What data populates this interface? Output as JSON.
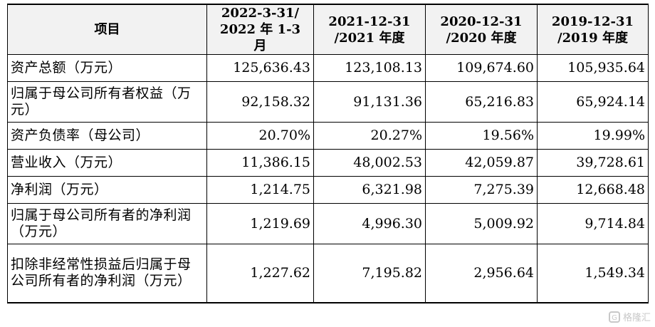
{
  "table": {
    "header": [
      "项目",
      "2022-3-31/\n2022 年 1-3 月",
      "2021-12-31\n/2021 年度",
      "2020-12-31\n/2020 年度",
      "2019-12-31\n/2019 年度"
    ],
    "rows": [
      {
        "label": "资产总额（万元）",
        "values": [
          "125,636.43",
          "123,108.13",
          "109,674.60",
          "105,935.64"
        ]
      },
      {
        "label": "归属于母公司所有者权益（万元）",
        "values": [
          "92,158.32",
          "91,131.36",
          "65,216.83",
          "65,924.14"
        ]
      },
      {
        "label": "资产负债率（母公司）",
        "values": [
          "20.70%",
          "20.27%",
          "19.56%",
          "19.99%"
        ]
      },
      {
        "label": "营业收入（万元）",
        "values": [
          "11,386.15",
          "48,002.53",
          "42,059.87",
          "39,728.61"
        ]
      },
      {
        "label": "净利润（万元）",
        "values": [
          "1,214.75",
          "6,321.98",
          "7,275.39",
          "12,668.48"
        ]
      },
      {
        "label": "归属于母公司所有者的净利润（万元）",
        "values": [
          "1,219.69",
          "4,996.30",
          "5,009.92",
          "9,714.84"
        ]
      },
      {
        "label": "扣除非经常性损益后归属于母公司所有者的净利润（万元）",
        "values": [
          "1,227.62",
          "7,195.82",
          "2,956.64",
          "1,549.34"
        ]
      }
    ]
  },
  "watermark": {
    "text": "格隆汇",
    "icon": "G-logo-icon"
  }
}
